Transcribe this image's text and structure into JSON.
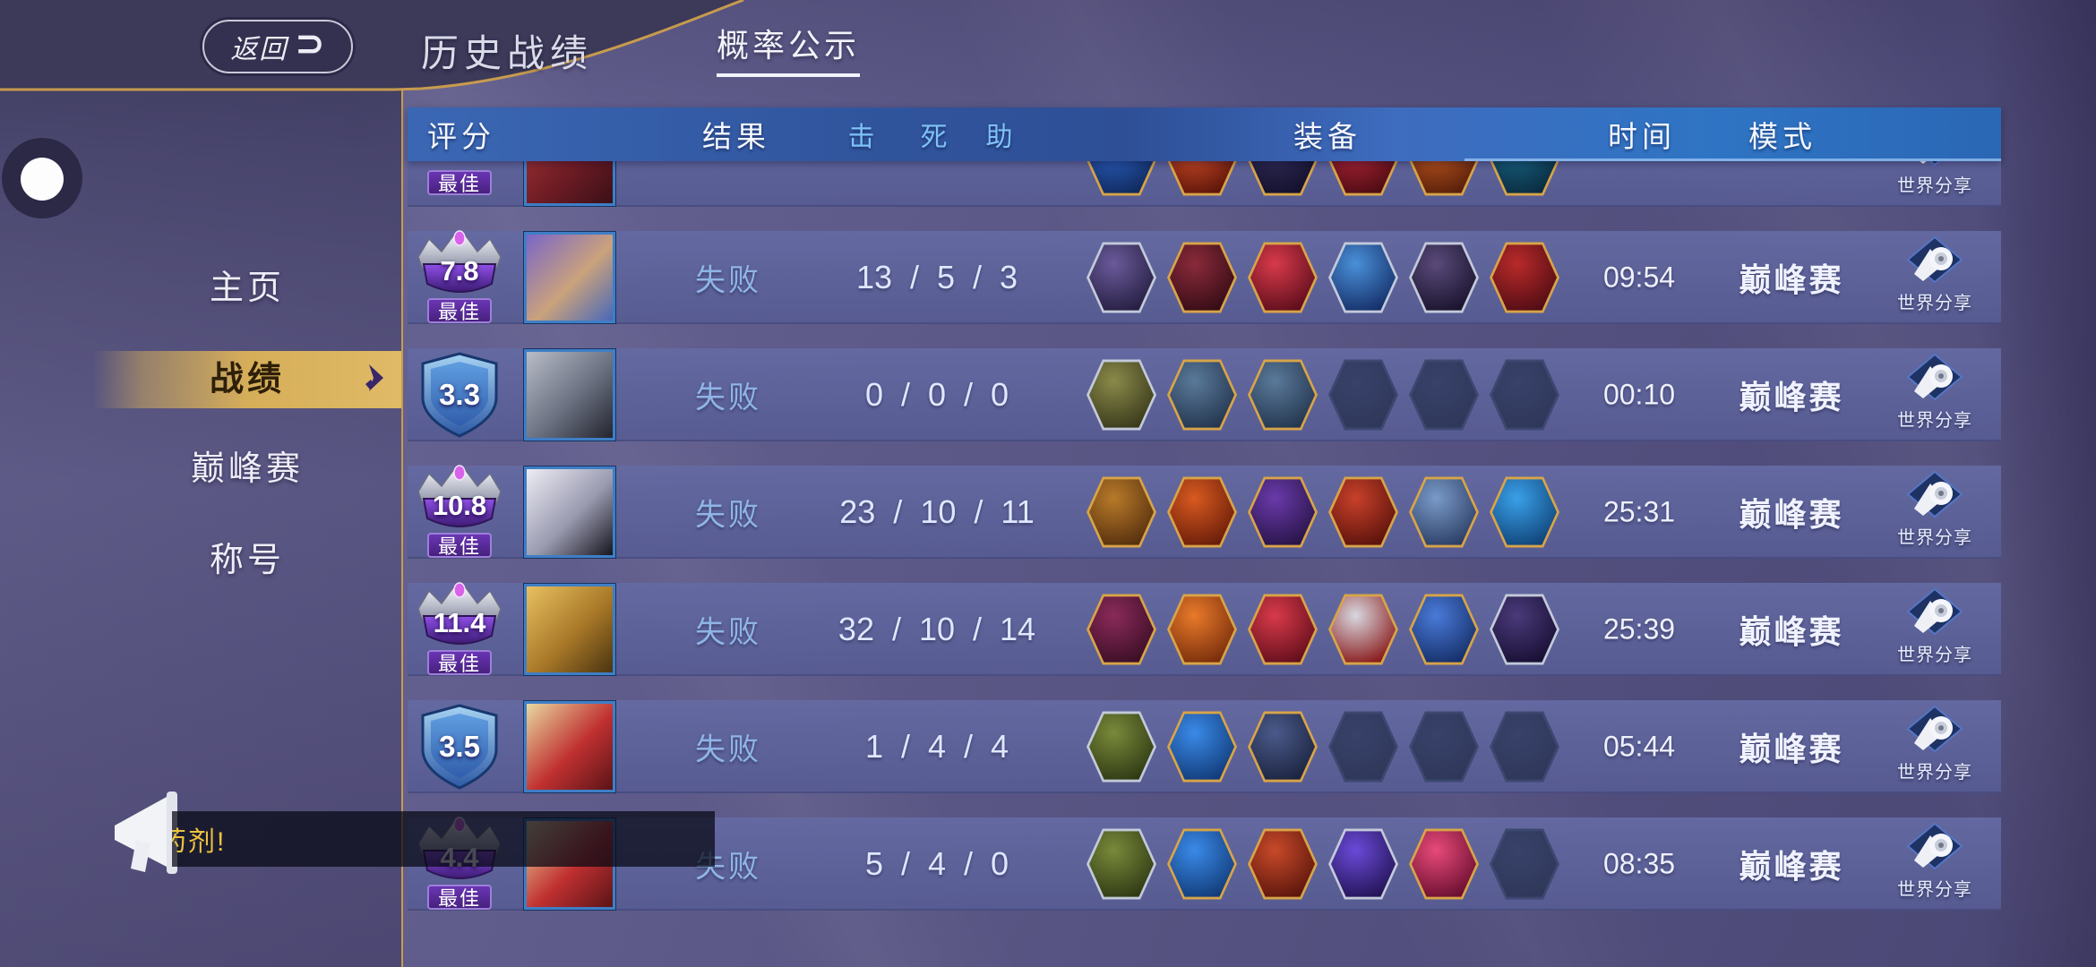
{
  "topbar": {
    "back_label": "返回",
    "back_icon": "⊃",
    "title": "历史战绩",
    "probability_tab": "概率公示"
  },
  "sidebar": {
    "items": [
      {
        "label": "主页",
        "active": false
      },
      {
        "label": "战绩",
        "active": true
      },
      {
        "label": "巅峰赛",
        "active": false
      },
      {
        "label": "称号",
        "active": false
      }
    ]
  },
  "table": {
    "headers": {
      "score": "评分",
      "result": "结果",
      "kill": "击",
      "death": "死",
      "assist": "助",
      "equipment": "装备",
      "time": "时间",
      "mode": "模式"
    }
  },
  "labels": {
    "best": "最佳",
    "world_share": "世界分享"
  },
  "rows": [
    {
      "partial": true,
      "best": true,
      "score": "",
      "avatar": [
        "#a83838",
        "#701c24",
        "#3a1018"
      ],
      "items": [
        [
          "#2e64c8",
          "#102a5e",
          "#d8a448"
        ],
        [
          "#d8502a",
          "#5e160a",
          "#d8a448"
        ],
        [
          "#34305e",
          "#14102c",
          "#d8a448"
        ],
        [
          "#b82838",
          "#4e0c14",
          "#d8a448"
        ],
        [
          "#c85a20",
          "#58200a",
          "#d8a448"
        ],
        [
          "#1a6a8a",
          "#0a2c40",
          "#d8a448"
        ]
      ]
    },
    {
      "badge": "crown",
      "best": true,
      "score": "7.8",
      "result": "失败",
      "k": "13",
      "d": "5",
      "a": "3",
      "time": "09:54",
      "mode": "巅峰赛",
      "avatar": [
        "#7a66c8",
        "#caa27c",
        "#4868b8"
      ],
      "items": [
        [
          "#6a5a9a",
          "#261f42",
          "#c3cada"
        ],
        [
          "#8a2a3a",
          "#360d16",
          "#d8a448"
        ],
        [
          "#d83a4a",
          "#5e0e1c",
          "#d8a448"
        ],
        [
          "#4a90d8",
          "#16306a",
          "#c3cada"
        ],
        [
          "#5a4a7a",
          "#1a142e",
          "#c3cada"
        ],
        [
          "#b82a2a",
          "#520d14",
          "#d8a448"
        ]
      ]
    },
    {
      "badge": "shield",
      "best": false,
      "score": "3.3",
      "result": "失败",
      "k": "0",
      "d": "0",
      "a": "0",
      "time": "00:10",
      "mode": "巅峰赛",
      "avatar": [
        "#b8bcc8",
        "#6a7080",
        "#23242e"
      ],
      "items": [
        [
          "#8a8a4a",
          "#3a3a1c",
          "#c3cada"
        ],
        [
          "#5a7a9a",
          "#24364f",
          "#d8a448"
        ],
        [
          "#5a7a9a",
          "#24364f",
          "#d8a448"
        ]
      ]
    },
    {
      "badge": "crown",
      "best": true,
      "score": "10.8",
      "result": "失败",
      "k": "23",
      "d": "10",
      "a": "11",
      "time": "25:31",
      "mode": "巅峰赛",
      "avatar": [
        "#ecedf4",
        "#9a9ab0",
        "#16161f"
      ],
      "items": [
        [
          "#b87a2a",
          "#57300e",
          "#d8a448"
        ],
        [
          "#d85a20",
          "#6a1d0a",
          "#d8a448"
        ],
        [
          "#6a3aaa",
          "#281448",
          "#d8a448"
        ],
        [
          "#c8402a",
          "#5c130c",
          "#d8a448"
        ],
        [
          "#7a9ac8",
          "#2c3f66",
          "#d8a448"
        ],
        [
          "#3aa0e8",
          "#10457a",
          "#d8a448"
        ]
      ]
    },
    {
      "badge": "crown",
      "best": true,
      "score": "11.4",
      "result": "失败",
      "k": "32",
      "d": "10",
      "a": "14",
      "time": "25:39",
      "mode": "巅峰赛",
      "avatar": [
        "#e8c060",
        "#a87828",
        "#4a3410"
      ],
      "items": [
        [
          "#8a2a5a",
          "#3c0f26",
          "#d8a448"
        ],
        [
          "#e87a2a",
          "#7a2e0c",
          "#d8a448"
        ],
        [
          "#d83a4a",
          "#640f1c",
          "#d8a448"
        ],
        [
          "#d8d8e0",
          "#8a1c1c",
          "#d8a448"
        ],
        [
          "#4a7ad8",
          "#16306a",
          "#d8a448"
        ],
        [
          "#4a3a7a",
          "#181034",
          "#c3cada"
        ]
      ]
    },
    {
      "badge": "shield",
      "best": false,
      "score": "3.5",
      "result": "失败",
      "k": "1",
      "d": "4",
      "a": "4",
      "time": "05:44",
      "mode": "巅峰赛",
      "avatar": [
        "#e8d8a0",
        "#c03030",
        "#5a1418"
      ],
      "items": [
        [
          "#7a8a3a",
          "#2f3a14",
          "#c3cada"
        ],
        [
          "#3a8ae8",
          "#123c7a",
          "#d8a448"
        ],
        [
          "#4a5a8a",
          "#1c2440",
          "#d8a448"
        ]
      ]
    },
    {
      "badge": "crown",
      "best": true,
      "score": "4.4",
      "result": "失败",
      "k": "5",
      "d": "4",
      "a": "0",
      "time": "08:35",
      "mode": "巅峰赛",
      "avatar": [
        "#e8d8a0",
        "#c03030",
        "#5a1418"
      ],
      "items": [
        [
          "#7a8a3a",
          "#2f3a14",
          "#c3cada"
        ],
        [
          "#3a8ae8",
          "#123c7a",
          "#d8a448"
        ],
        [
          "#c84a2a",
          "#5c160c",
          "#d8a448"
        ],
        [
          "#6a4ad8",
          "#241456",
          "#c3cada"
        ],
        [
          "#e84a7a",
          "#6a0f30",
          "#d8a448"
        ]
      ]
    }
  ],
  "toast": {
    "text": "药剂!"
  },
  "colors": {
    "accent_gold": "#c79b4e",
    "header_blue": "#3a67b4",
    "active_menu_gold": "#d6ae5a",
    "result_fail_blue": "#8fb4e6",
    "best_badge_purple": "#47217e",
    "empty_slot": "#333c61"
  }
}
